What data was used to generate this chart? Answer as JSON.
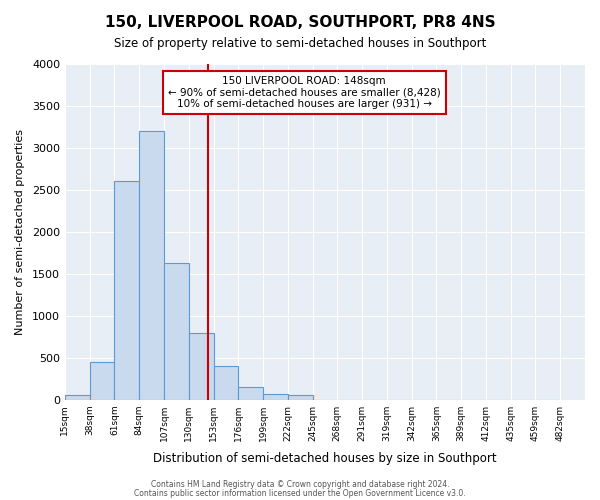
{
  "title": "150, LIVERPOOL ROAD, SOUTHPORT, PR8 4NS",
  "subtitle": "Size of property relative to semi-detached houses in Southport",
  "xlabel": "Distribution of semi-detached houses by size in Southport",
  "ylabel": "Number of semi-detached properties",
  "bin_edges": [
    15,
    38,
    61,
    84,
    107,
    130,
    153,
    176,
    199,
    222,
    245,
    268,
    291,
    314,
    337,
    360,
    383,
    406,
    429,
    452,
    475
  ],
  "bin_counts": [
    50,
    450,
    2600,
    3200,
    1630,
    800,
    400,
    155,
    70,
    50,
    0,
    0,
    0,
    0,
    0,
    0,
    0,
    0,
    0,
    0
  ],
  "bar_facecolor": "#c9d9ee",
  "bar_edgecolor": "#5b9bd5",
  "property_line_x": 148,
  "property_line_color": "#cc0000",
  "ylim": [
    0,
    4000
  ],
  "xlim": [
    15,
    498
  ],
  "annotation_text": "150 LIVERPOOL ROAD: 148sqm\n← 90% of semi-detached houses are smaller (8,428)\n10% of semi-detached houses are larger (931) →",
  "annotation_box_color": "#cc0000",
  "annotation_text_color": "#000000",
  "footer_line1": "Contains HM Land Registry data © Crown copyright and database right 2024.",
  "footer_line2": "Contains public sector information licensed under the Open Government Licence v3.0.",
  "background_color": "#e8eef5",
  "tick_labels": [
    "15sqm",
    "38sqm",
    "61sqm",
    "84sqm",
    "107sqm",
    "130sqm",
    "153sqm",
    "176sqm",
    "199sqm",
    "222sqm",
    "245sqm",
    "268sqm",
    "291sqm",
    "319sqm",
    "342sqm",
    "365sqm",
    "389sqm",
    "412sqm",
    "435sqm",
    "459sqm",
    "482sqm"
  ]
}
